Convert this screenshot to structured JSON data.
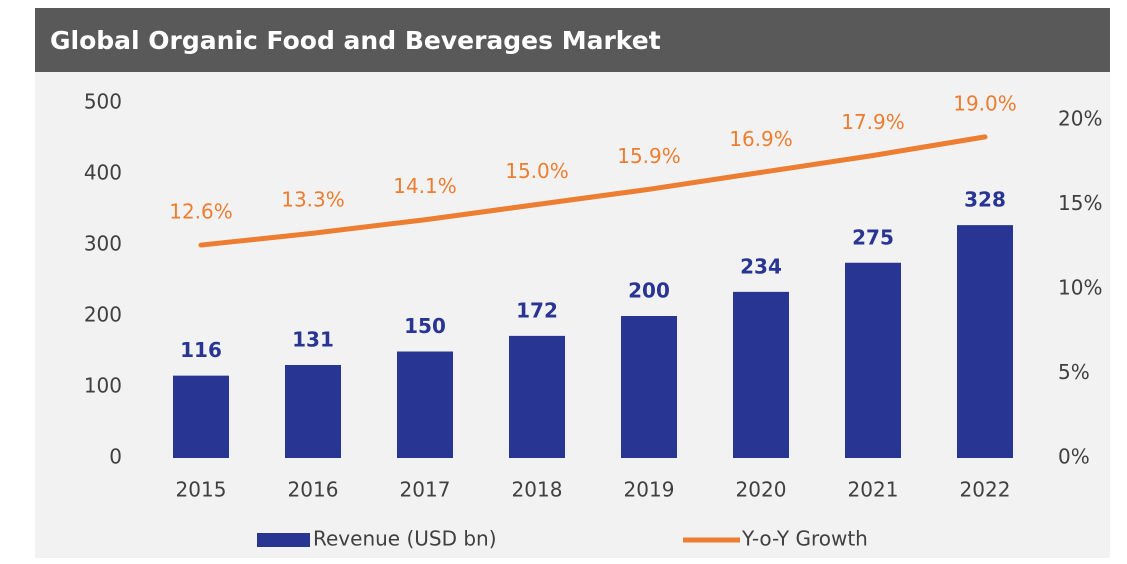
{
  "chart_data": {
    "type": "bar_line",
    "title": "Global Organic Food and Beverages Market",
    "categories": [
      "2015",
      "2016",
      "2017",
      "2018",
      "2019",
      "2020",
      "2021",
      "2022"
    ],
    "series": [
      {
        "name": "Revenue (USD bn)",
        "type": "bar",
        "color": "#283593",
        "values": [
          116,
          131,
          150,
          172,
          200,
          234,
          275,
          328
        ]
      },
      {
        "name": "Y-o-Y Growth",
        "type": "line",
        "axis": "y2",
        "color": "#ed7d31",
        "values": [
          12.6,
          13.3,
          14.1,
          15.0,
          15.9,
          16.9,
          17.9,
          19.0
        ],
        "value_labels": [
          "12.6%",
          "13.3%",
          "14.1%",
          "15.0%",
          "15.9%",
          "16.9%",
          "17.9%",
          "19.0%"
        ]
      }
    ],
    "ylim": [
      0,
      500
    ],
    "yticks": [
      0,
      100,
      200,
      300,
      400,
      500
    ],
    "y2lim": [
      0,
      20
    ],
    "y2ticks": [
      {
        "value": 0,
        "label": "0%"
      },
      {
        "value": 5,
        "label": "5%"
      },
      {
        "value": 10,
        "label": "10%"
      },
      {
        "value": 15,
        "label": "15%"
      },
      {
        "value": 20,
        "label": "20%"
      }
    ],
    "grid": false,
    "legend": "bottom"
  }
}
